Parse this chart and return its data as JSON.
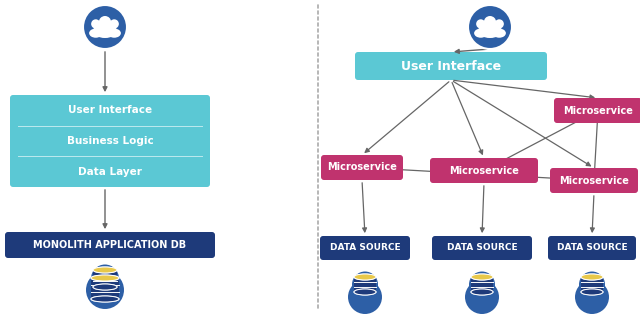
{
  "bg_color": "#ffffff",
  "circle_color": "#2d5fa6",
  "monolith_box_color": "#5bc8d4",
  "monolith_layers": [
    "User Interface",
    "Business Logic",
    "Data Layer"
  ],
  "monolith_db_color": "#1e3a7a",
  "monolith_db_text": "MONOLITH APPLICATION DB",
  "ui_box_color": "#5bc8d4",
  "ui_box_text": "User Interface",
  "ms_color": "#c0336e",
  "ds_color": "#1e3a7a",
  "ds_text": "DATA SOURCE",
  "arrow_color": "#666666",
  "divider_dot_color": "#aaaaaa",
  "db_body_color": "#1e3a7a",
  "db_top_color": "#e8c84a",
  "white": "#ffffff"
}
